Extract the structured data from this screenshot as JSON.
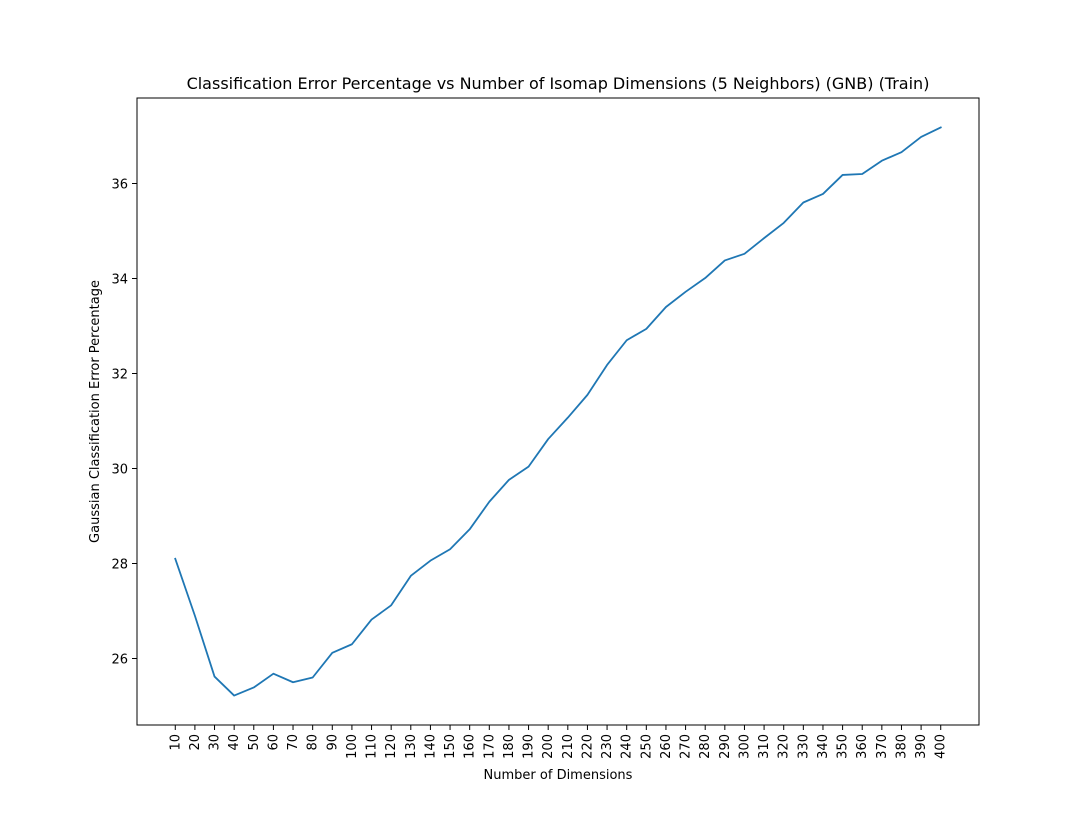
{
  "chart_data": {
    "type": "line",
    "title": "Classification Error Percentage vs Number of Isomap Dimensions (5 Neighbors) (GNB) (Train)",
    "xlabel": "Number of Dimensions",
    "ylabel": "Gaussian Classification Error Percentage",
    "x": [
      10,
      20,
      30,
      40,
      50,
      60,
      70,
      80,
      90,
      100,
      110,
      120,
      130,
      140,
      150,
      160,
      170,
      180,
      190,
      200,
      210,
      220,
      230,
      240,
      250,
      260,
      270,
      280,
      290,
      300,
      310,
      320,
      330,
      340,
      350,
      360,
      370,
      380,
      390,
      400
    ],
    "x_ticks": [
      "10",
      "20",
      "30",
      "40",
      "50",
      "60",
      "70",
      "80",
      "90",
      "100",
      "110",
      "120",
      "130",
      "140",
      "150",
      "160",
      "170",
      "180",
      "190",
      "200",
      "210",
      "220",
      "230",
      "240",
      "250",
      "260",
      "270",
      "280",
      "290",
      "300",
      "310",
      "320",
      "330",
      "340",
      "350",
      "360",
      "370",
      "380",
      "390",
      "400"
    ],
    "y_ticks": [
      26,
      28,
      30,
      32,
      34,
      36
    ],
    "ylim": [
      24.6,
      37.8
    ],
    "grid": false,
    "series": [
      {
        "color": "#1f77b4",
        "values": [
          28.1,
          26.9,
          25.62,
          25.22,
          25.39,
          25.68,
          25.5,
          25.6,
          26.12,
          26.3,
          26.82,
          27.12,
          27.74,
          28.06,
          28.3,
          28.72,
          29.3,
          29.76,
          30.04,
          30.62,
          31.07,
          31.55,
          32.18,
          32.7,
          32.94,
          33.4,
          33.72,
          34.01,
          34.38,
          34.52,
          34.85,
          35.17,
          35.6,
          35.78,
          36.18,
          36.2,
          36.48,
          36.66,
          36.98,
          37.18
        ]
      }
    ]
  }
}
